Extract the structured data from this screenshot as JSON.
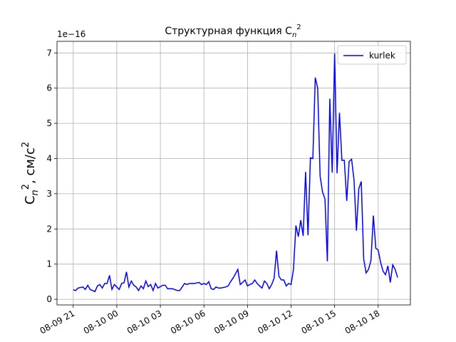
{
  "chart_data": {
    "type": "line",
    "title": [
      "Структурная функция C",
      "n",
      "2"
    ],
    "y_label": [
      "C",
      "n",
      "2",
      ", см/с",
      "2"
    ],
    "offset_text": "1e−16",
    "x": [
      "08-09 21:00",
      "08-09 21:10",
      "08-09 21:20",
      "08-09 21:40",
      "08-09 21:50",
      "08-09 22:00",
      "08-09 22:10",
      "08-09 22:30",
      "08-09 22:40",
      "08-09 22:50",
      "08-09 23:00",
      "08-09 23:10",
      "08-09 23:20",
      "08-09 23:30",
      "08-09 23:40",
      "08-09 23:50",
      "08-10 00:00",
      "08-10 00:10",
      "08-10 00:20",
      "08-10 00:30",
      "08-10 00:40",
      "08-10 00:50",
      "08-10 01:00",
      "08-10 01:10",
      "08-10 01:20",
      "08-10 01:30",
      "08-10 01:40",
      "08-10 01:50",
      "08-10 02:00",
      "08-10 02:10",
      "08-10 02:20",
      "08-10 02:30",
      "08-10 02:40",
      "08-10 02:50",
      "08-10 03:10",
      "08-10 03:20",
      "08-10 03:30",
      "08-10 03:40",
      "08-10 03:50",
      "08-10 04:10",
      "08-10 04:20",
      "08-10 04:30",
      "08-10 04:40",
      "08-10 04:50",
      "08-10 05:00",
      "08-10 05:10",
      "08-10 05:20",
      "08-10 05:40",
      "08-10 05:50",
      "08-10 06:00",
      "08-10 06:10",
      "08-10 06:20",
      "08-10 06:30",
      "08-10 06:40",
      "08-10 06:50",
      "08-10 07:00",
      "08-10 07:10",
      "08-10 07:30",
      "08-10 07:40",
      "08-10 07:50",
      "08-10 08:00",
      "08-10 08:10",
      "08-10 08:20",
      "08-10 08:30",
      "08-10 08:40",
      "08-10 08:50",
      "08-10 09:00",
      "08-10 09:10",
      "08-10 09:20",
      "08-10 09:30",
      "08-10 09:40",
      "08-10 09:50",
      "08-10 10:00",
      "08-10 10:10",
      "08-10 10:20",
      "08-10 10:30",
      "08-10 10:40",
      "08-10 10:50",
      "08-10 11:00",
      "08-10 11:10",
      "08-10 11:20",
      "08-10 11:30",
      "08-10 11:40",
      "08-10 11:50",
      "08-10 12:00",
      "08-10 12:10",
      "08-10 12:20",
      "08-10 12:30",
      "08-10 12:40",
      "08-10 12:50",
      "08-10 13:00",
      "08-10 13:10",
      "08-10 13:20",
      "08-10 13:30",
      "08-10 13:40",
      "08-10 13:50",
      "08-10 14:00",
      "08-10 14:10",
      "08-10 14:20",
      "08-10 14:30",
      "08-10 14:40",
      "08-10 14:50",
      "08-10 15:00",
      "08-10 15:10",
      "08-10 15:20",
      "08-10 15:30",
      "08-10 15:40",
      "08-10 15:50",
      "08-10 16:00",
      "08-10 16:10",
      "08-10 16:20",
      "08-10 16:30",
      "08-10 16:40",
      "08-10 16:50",
      "08-10 17:00",
      "08-10 17:10",
      "08-10 17:20",
      "08-10 17:30",
      "08-10 17:40",
      "08-10 17:50",
      "08-10 18:00",
      "08-10 18:10",
      "08-10 18:20",
      "08-10 18:30",
      "08-10 18:40",
      "08-10 18:50",
      "08-10 19:00",
      "08-10 19:10",
      "08-10 19:20"
    ],
    "series": [
      {
        "name": "kurlek",
        "color": "#0000ff",
        "values": [
          0.27,
          0.25,
          0.32,
          0.35,
          0.28,
          0.4,
          0.28,
          0.22,
          0.38,
          0.42,
          0.32,
          0.45,
          0.45,
          0.68,
          0.28,
          0.42,
          0.35,
          0.28,
          0.45,
          0.47,
          0.78,
          0.35,
          0.52,
          0.4,
          0.35,
          0.25,
          0.38,
          0.3,
          0.52,
          0.36,
          0.42,
          0.25,
          0.45,
          0.32,
          0.4,
          0.4,
          0.3,
          0.3,
          0.3,
          0.25,
          0.25,
          0.35,
          0.45,
          0.42,
          0.45,
          0.45,
          0.45,
          0.48,
          0.42,
          0.45,
          0.42,
          0.5,
          0.3,
          0.28,
          0.35,
          0.32,
          0.32,
          0.35,
          0.38,
          0.5,
          0.6,
          0.72,
          0.85,
          0.42,
          0.48,
          0.55,
          0.38,
          0.42,
          0.45,
          0.55,
          0.45,
          0.38,
          0.32,
          0.52,
          0.45,
          0.3,
          0.42,
          0.6,
          1.38,
          0.65,
          0.55,
          0.55,
          0.38,
          0.45,
          0.42,
          0.85,
          2.1,
          1.78,
          2.25,
          1.8,
          3.62,
          1.82,
          4.02,
          4.0,
          6.3,
          6.0,
          3.5,
          3.05,
          2.85,
          1.08,
          5.7,
          3.6,
          6.98,
          3.58,
          5.3,
          3.95,
          3.95,
          2.8,
          3.92,
          3.98,
          3.4,
          1.95,
          3.15,
          3.35,
          1.15,
          0.75,
          0.85,
          1.1,
          2.38,
          1.45,
          1.4,
          1.05,
          0.8,
          0.7,
          0.95,
          0.48,
          0.98,
          0.85,
          0.62
        ]
      }
    ],
    "xlim": [
      "08-09 19:53",
      "08-10 20:13"
    ],
    "xticks": [
      {
        "value": "08-09 21:00",
        "label": "08-09 21"
      },
      {
        "value": "08-10 00:00",
        "label": "08-10 00"
      },
      {
        "value": "08-10 03:00",
        "label": "08-10 03"
      },
      {
        "value": "08-10 06:00",
        "label": "08-10 06"
      },
      {
        "value": "08-10 09:00",
        "label": "08-10 09"
      },
      {
        "value": "08-10 12:00",
        "label": "08-10 12"
      },
      {
        "value": "08-10 15:00",
        "label": "08-10 15"
      },
      {
        "value": "08-10 18:00",
        "label": "08-10 18"
      }
    ],
    "ylim": [
      -0.16,
      7.33
    ],
    "yticks": [
      0,
      1,
      2,
      3,
      4,
      5,
      6,
      7
    ],
    "grid": true,
    "legend": "upper right"
  }
}
